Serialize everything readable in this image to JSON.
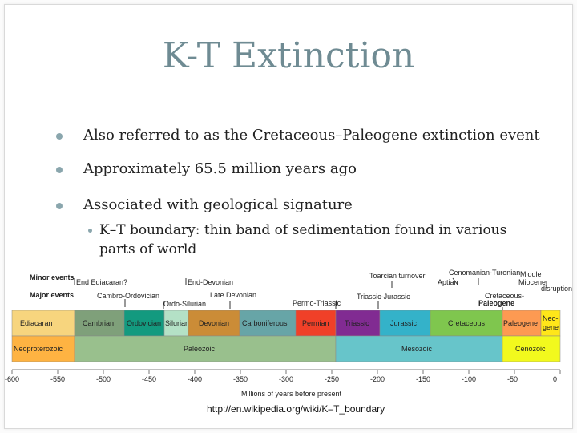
{
  "slide": {
    "title": "K-T Extinction",
    "bullets": [
      "Also referred to as the Cretaceous–Paleogene extinction event",
      "Approximately 65.5 million years ago",
      "Associated with geological signature"
    ],
    "sub_bullet_line1": "K–T boundary: thin band of sedimentation found in various",
    "sub_bullet_line2": "parts of world",
    "source_url": "http://en.wikipedia.org/wiki/K–T_boundary"
  },
  "timeline": {
    "row_labels": [
      "Minor events",
      "Major events"
    ],
    "minor_events": [
      "End Ediacaran?",
      "End-Devonian",
      "Toarcian turnover",
      "Cenomanian-Turonian",
      "Aptian",
      "Middle Miocene disruption"
    ],
    "major_events": [
      "Cambro-Ordovician",
      "Ordo-Silurian",
      "Late Devonian",
      "Permo-Triassic",
      "Triassic-Jurassic",
      "Cretaceous-Paleogene"
    ],
    "periods": [
      {
        "name": "Ediacaran",
        "color": "#f7d57e"
      },
      {
        "name": "Cambrian",
        "color": "#7fa07a"
      },
      {
        "name": "Ordovician",
        "color": "#139a7f"
      },
      {
        "name": "Silurian",
        "color": "#b4e1c6"
      },
      {
        "name": "Devonian",
        "color": "#cb8c37"
      },
      {
        "name": "Carboniferous",
        "color": "#67a5a7"
      },
      {
        "name": "Permian",
        "color": "#f04028"
      },
      {
        "name": "Triassic",
        "color": "#812b92"
      },
      {
        "name": "Jurassic",
        "color": "#34b2c9"
      },
      {
        "name": "Cretaceous",
        "color": "#7fc64e"
      },
      {
        "name": "Paleogene",
        "color": "#fd9a52"
      },
      {
        "name": "Neo-gene",
        "color": "#ffe619"
      }
    ],
    "eras": [
      {
        "name": "Neoproterozoic",
        "color": "#feb342"
      },
      {
        "name": "Paleozoic",
        "color": "#99c08d"
      },
      {
        "name": "Mesozoic",
        "color": "#67c5ca"
      },
      {
        "name": "Cenozoic",
        "color": "#f2f91d"
      }
    ],
    "ticks": [
      "-600",
      "-550",
      "-500",
      "-450",
      "-400",
      "-350",
      "-300",
      "-250",
      "-200",
      "-150",
      "-100",
      "-50",
      "0"
    ],
    "xlabel": "Millions of years before present"
  }
}
